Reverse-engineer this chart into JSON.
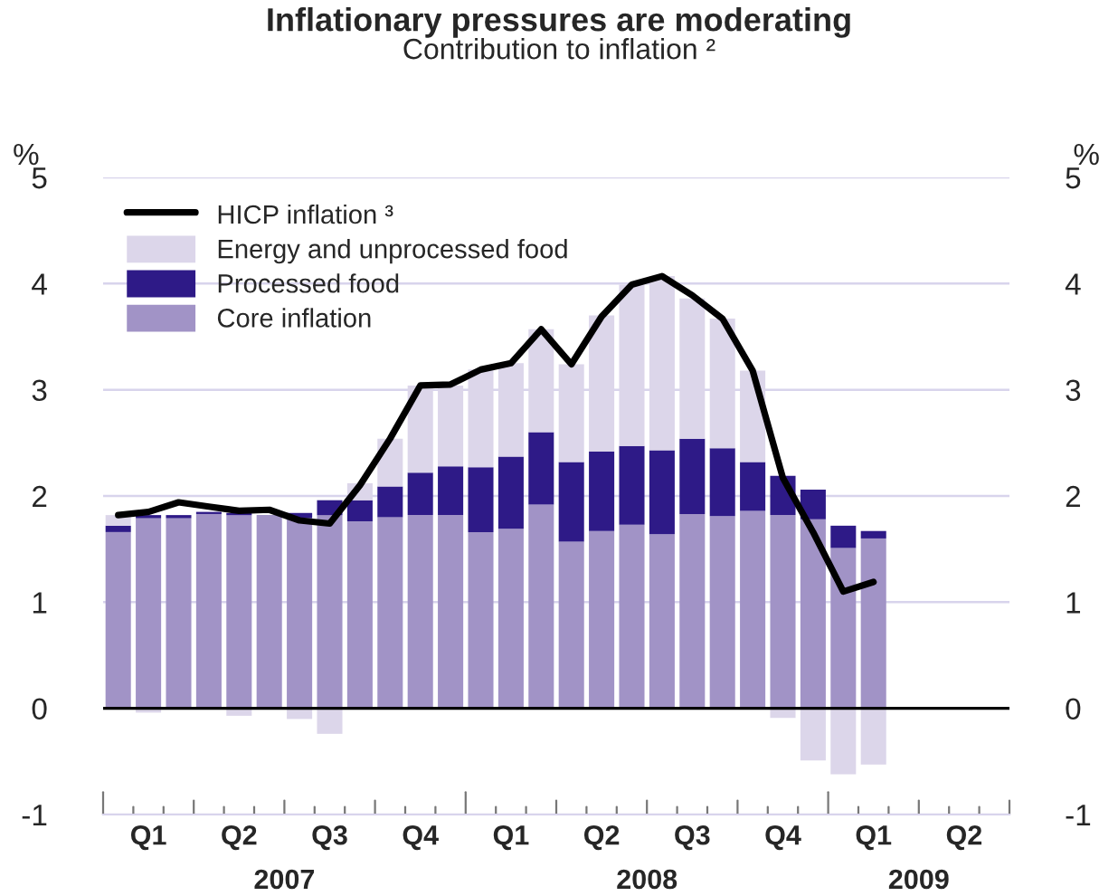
{
  "chart_data": {
    "type": "bar",
    "title": "Inflationary pressures are moderating",
    "subtitle": "Contribution to inflation ²",
    "ylabel": "%",
    "y2label": "%",
    "categories": [
      null,
      "Q1",
      null,
      null,
      "Q2",
      null,
      null,
      "Q3",
      null,
      null,
      "Q4",
      null,
      null,
      "Q1",
      null,
      null,
      "Q2",
      null,
      null,
      "Q3",
      null,
      null,
      "Q4",
      null,
      null,
      "Q1",
      null,
      null,
      "Q2",
      null
    ],
    "stacked": true,
    "series": [
      {
        "name": "Core inflation",
        "color": "#a193c6",
        "values": [
          1.66,
          1.79,
          1.79,
          1.83,
          1.82,
          1.82,
          1.79,
          1.82,
          1.76,
          1.8,
          1.82,
          1.82,
          1.66,
          1.69,
          1.92,
          1.57,
          1.67,
          1.73,
          1.64,
          1.83,
          1.81,
          1.86,
          1.82,
          1.78,
          1.51,
          1.6,
          null,
          null,
          null,
          null
        ]
      },
      {
        "name": "Processed food",
        "color": "#2e1a87",
        "values": [
          0.06,
          0.03,
          0.03,
          0.02,
          0.02,
          null,
          0.05,
          0.14,
          0.2,
          0.29,
          0.4,
          0.46,
          0.61,
          0.68,
          0.68,
          0.75,
          0.75,
          0.74,
          0.79,
          0.71,
          0.64,
          0.46,
          0.37,
          0.28,
          0.21,
          0.07,
          null,
          null,
          null,
          null
        ]
      },
      {
        "name": "Energy and unprocessed food",
        "color": "#dcd6ea",
        "values": [
          0.1,
          -0.04,
          0.0,
          0.0,
          -0.07,
          0.0,
          -0.1,
          -0.24,
          0.16,
          0.45,
          0.82,
          0.76,
          0.92,
          0.88,
          0.97,
          0.92,
          1.28,
          1.52,
          1.64,
          1.32,
          1.22,
          0.86,
          -0.09,
          -0.49,
          -0.62,
          -0.53,
          null,
          null,
          null,
          null
        ]
      },
      {
        "name": "HICP inflation ³",
        "type": "line",
        "color": "#000000",
        "values": [
          1.82,
          1.85,
          1.94,
          1.9,
          1.86,
          1.87,
          1.77,
          1.74,
          2.1,
          2.54,
          3.04,
          3.05,
          3.19,
          3.25,
          3.57,
          3.24,
          3.69,
          3.99,
          4.07,
          3.89,
          3.67,
          3.18,
          2.17,
          1.66,
          1.1,
          1.19,
          null,
          null,
          null,
          null
        ]
      }
    ],
    "ylim": [
      -1,
      5
    ],
    "yticks": [
      -1,
      0,
      1,
      2,
      3,
      4,
      5
    ],
    "y2lim": [
      -1,
      5
    ],
    "y2ticks": [
      -1,
      0,
      1,
      2,
      3,
      4,
      5
    ],
    "ref_lines": [
      {
        "axis": "y",
        "value": 0,
        "color": "#000000"
      }
    ],
    "grid": "y",
    "legend": "top left",
    "annotations": [
      "2007",
      "2008",
      "2009"
    ]
  }
}
